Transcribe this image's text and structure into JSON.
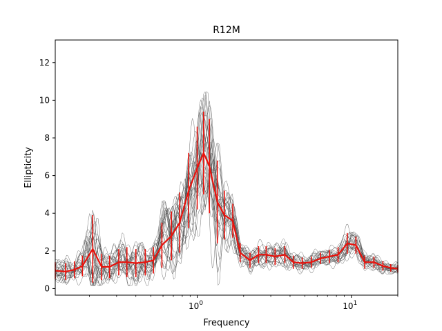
{
  "chart_data": {
    "type": "line",
    "title": "R12M",
    "xlabel": "Frequency",
    "ylabel": "Ellipticity",
    "xscale": "log",
    "xlim": [
      0.12,
      20
    ],
    "ylim": [
      -0.35,
      13.2
    ],
    "y_ticks": [
      0,
      2,
      4,
      6,
      8,
      10,
      12
    ],
    "x_ticks": [
      {
        "base": "10",
        "exp": "0",
        "value": 1
      },
      {
        "base": "10",
        "exp": "1",
        "value": 10
      }
    ],
    "grid": false,
    "colors": {
      "individual": "#444444",
      "mean": "#e8120c"
    },
    "mean_series": {
      "x": [
        0.12,
        0.14,
        0.16,
        0.18,
        0.21,
        0.24,
        0.27,
        0.31,
        0.35,
        0.4,
        0.46,
        0.52,
        0.59,
        0.68,
        0.77,
        0.88,
        1.0,
        1.1,
        1.2,
        1.35,
        1.5,
        1.7,
        1.9,
        2.2,
        2.5,
        2.8,
        3.2,
        3.7,
        4.2,
        4.8,
        5.5,
        6.3,
        7.2,
        8.2,
        9.4,
        10.7,
        12.2,
        14,
        16,
        18,
        20
      ],
      "y": [
        0.95,
        0.9,
        1.0,
        1.2,
        2.1,
        1.15,
        1.15,
        1.4,
        1.4,
        1.35,
        1.4,
        1.5,
        2.3,
        2.8,
        3.5,
        5.2,
        6.4,
        7.2,
        6.5,
        4.6,
        3.9,
        3.6,
        1.9,
        1.5,
        1.8,
        1.8,
        1.7,
        1.8,
        1.4,
        1.35,
        1.4,
        1.6,
        1.7,
        1.8,
        2.4,
        2.3,
        1.4,
        1.4,
        1.2,
        1.1,
        1.05
      ],
      "err": [
        0.45,
        0.45,
        0.45,
        0.55,
        1.8,
        0.7,
        0.6,
        0.7,
        0.8,
        0.75,
        0.7,
        0.7,
        1.2,
        1.3,
        1.6,
        2.0,
        2.2,
        2.2,
        2.5,
        2.2,
        1.3,
        0.9,
        0.5,
        0.4,
        0.45,
        0.45,
        0.45,
        0.45,
        0.35,
        0.3,
        0.3,
        0.3,
        0.35,
        0.4,
        0.55,
        0.45,
        0.35,
        0.3,
        0.25,
        0.2,
        0.2
      ]
    }
  }
}
